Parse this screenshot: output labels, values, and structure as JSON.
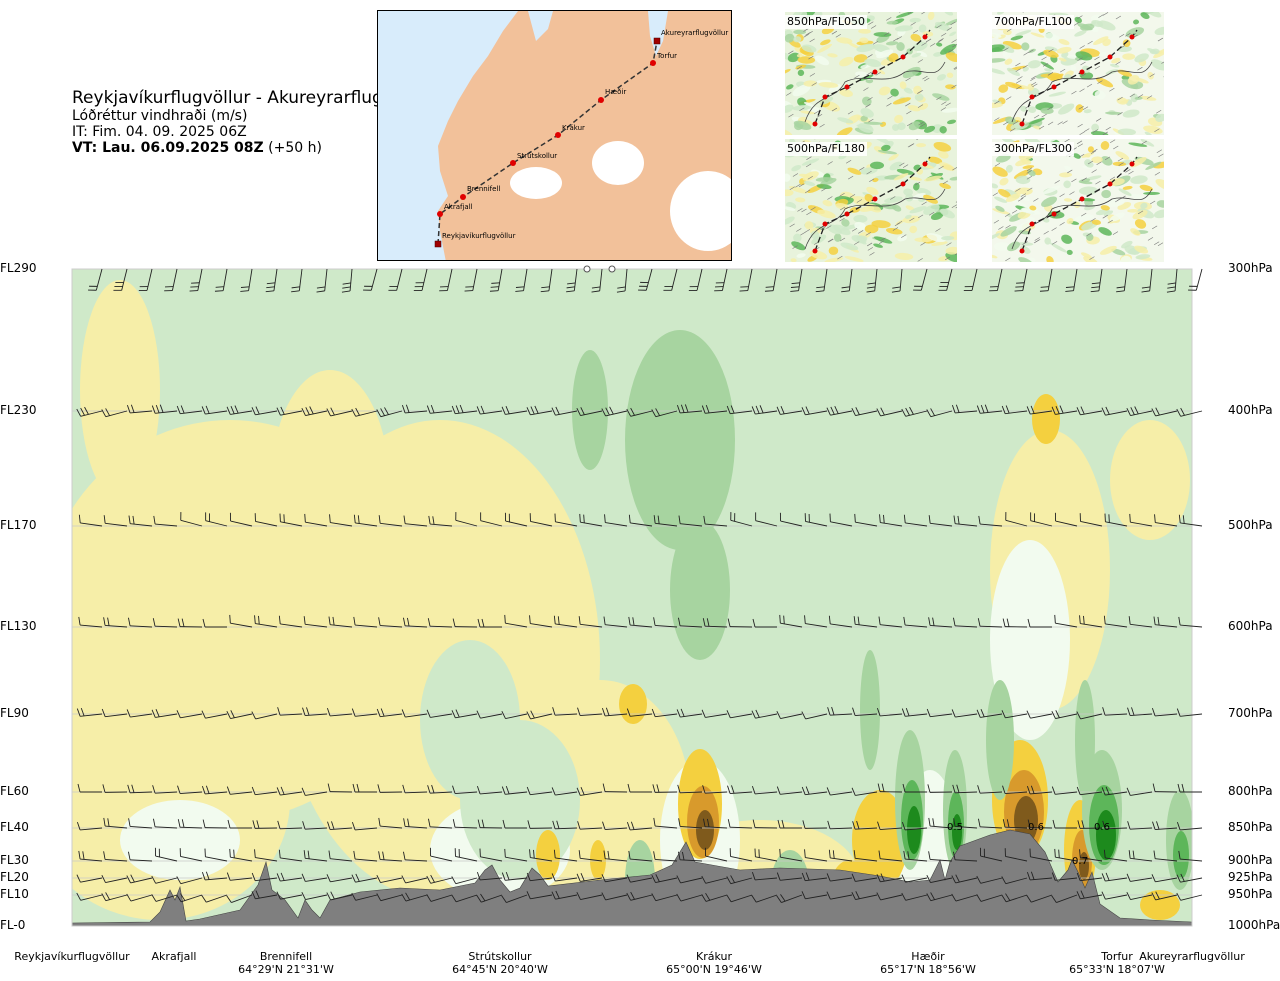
{
  "header": {
    "route": "Reykjavíkurflugvöllur - Akureyrarflugvöllur",
    "quantity": "Lóðréttur vindhraði (m/s)",
    "issue_time": "IT: Fim. 04. 09. 2025 06Z",
    "valid_prefix": "VT: Lau. 06.09.2025 08Z",
    "valid_suffix": "(+50 h)"
  },
  "map": {
    "places": [
      "Akureyrarflugvöllur",
      "Torfur",
      "Hæðir",
      "Krákur",
      "Strútskollur",
      "Brennifell",
      "Akrafjall",
      "Reykjavíkurflugvöllur"
    ],
    "colors": {
      "sea": "#d8ecfb",
      "land": "#f2c19a",
      "ice": "#ffffff",
      "route": "#333333",
      "point": "#e00000"
    }
  },
  "thumbnails": [
    {
      "label": "850hPa/FL050"
    },
    {
      "label": "700hPa/FL100"
    },
    {
      "label": "500hPa/FL180"
    },
    {
      "label": "300hPa/FL300"
    }
  ],
  "chart_data": {
    "type": "heatmap",
    "title": "Lóðréttur vindhraði (m/s)",
    "y_left_ticks": [
      "FL290",
      "FL230",
      "FL170",
      "FL130",
      "FL90",
      "FL60",
      "FL40",
      "FL30",
      "FL20",
      "FL10",
      "FL-0"
    ],
    "y_right_ticks": [
      "300hPa",
      "400hPa",
      "500hPa",
      "600hPa",
      "700hPa",
      "800hPa",
      "850hPa",
      "900hPa",
      "925hPa",
      "950hPa",
      "1000hPa"
    ],
    "pressure_levels_hpa": [
      300,
      400,
      500,
      600,
      700,
      800,
      850,
      900,
      925,
      950,
      1000
    ],
    "x_locations": [
      {
        "name": "Reykjavíkurflugvöllur",
        "coord": ""
      },
      {
        "name": "Akrafjall",
        "coord": ""
      },
      {
        "name": "Brennifell",
        "coord": "64°29'N 21°31'W"
      },
      {
        "name": "Strútskollur",
        "coord": "64°45'N 20°40'W"
      },
      {
        "name": "Krákur",
        "coord": "65°00'N 19°46'W"
      },
      {
        "name": "Hæðir",
        "coord": "65°17'N 18°56'W"
      },
      {
        "name": "Torfur",
        "coord": "65°33'N 18°07'W"
      },
      {
        "name": "Akureyrarflugvöllur",
        "coord": ""
      }
    ],
    "contour_labels": [
      "0.5",
      "0.6",
      "0.6",
      "0.7"
    ],
    "colors": {
      "strong_down": "#7f5a1c",
      "down": "#d89a2c",
      "weak_down": "#f4d03f",
      "slight_down": "#f6eea8",
      "neutral": "#f2fbef",
      "slight_up": "#cfe9c9",
      "weak_up": "#a7d4a0",
      "up": "#5db65a",
      "strong_up": "#1d8a1d",
      "terrain": "#7f7f7f"
    },
    "grid": true
  }
}
